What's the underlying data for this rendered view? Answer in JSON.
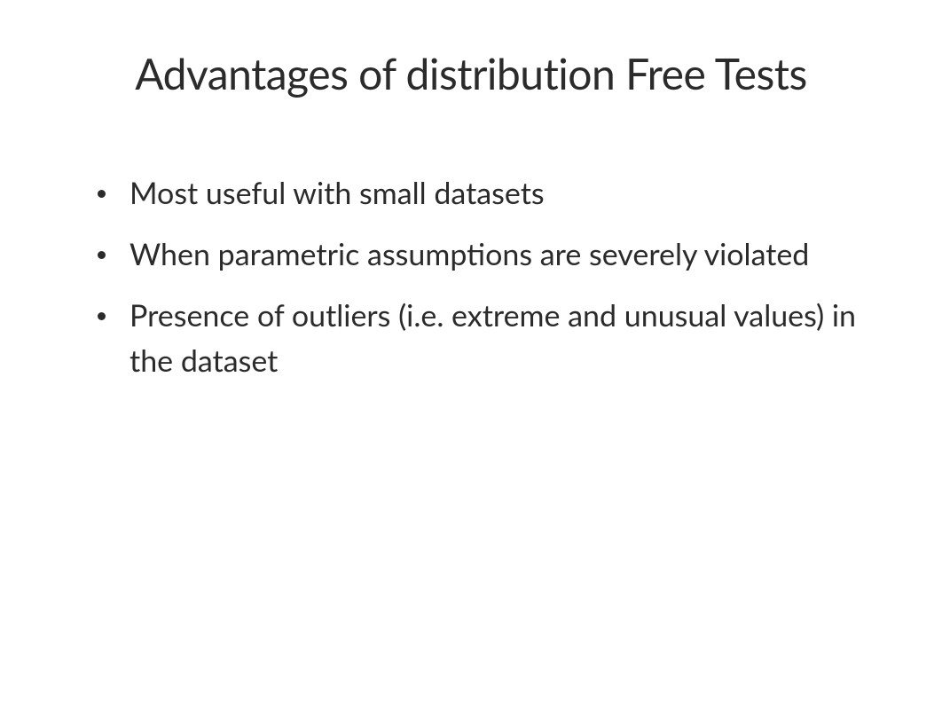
{
  "slide": {
    "title": "Advantages of distribution Free Tests",
    "bullets": [
      "Most useful with small datasets",
      "When parametric assumptions are severely violated",
      "Presence of outliers (i.e. extreme and unusual values) in the dataset"
    ],
    "colors": {
      "background": "#ffffff",
      "text": "#2b2b2b",
      "bullet": "#2b2b2b"
    },
    "typography": {
      "title_fontsize": 48,
      "title_weight": 400,
      "body_fontsize": 34,
      "body_weight": 400,
      "line_height": 1.5
    }
  }
}
